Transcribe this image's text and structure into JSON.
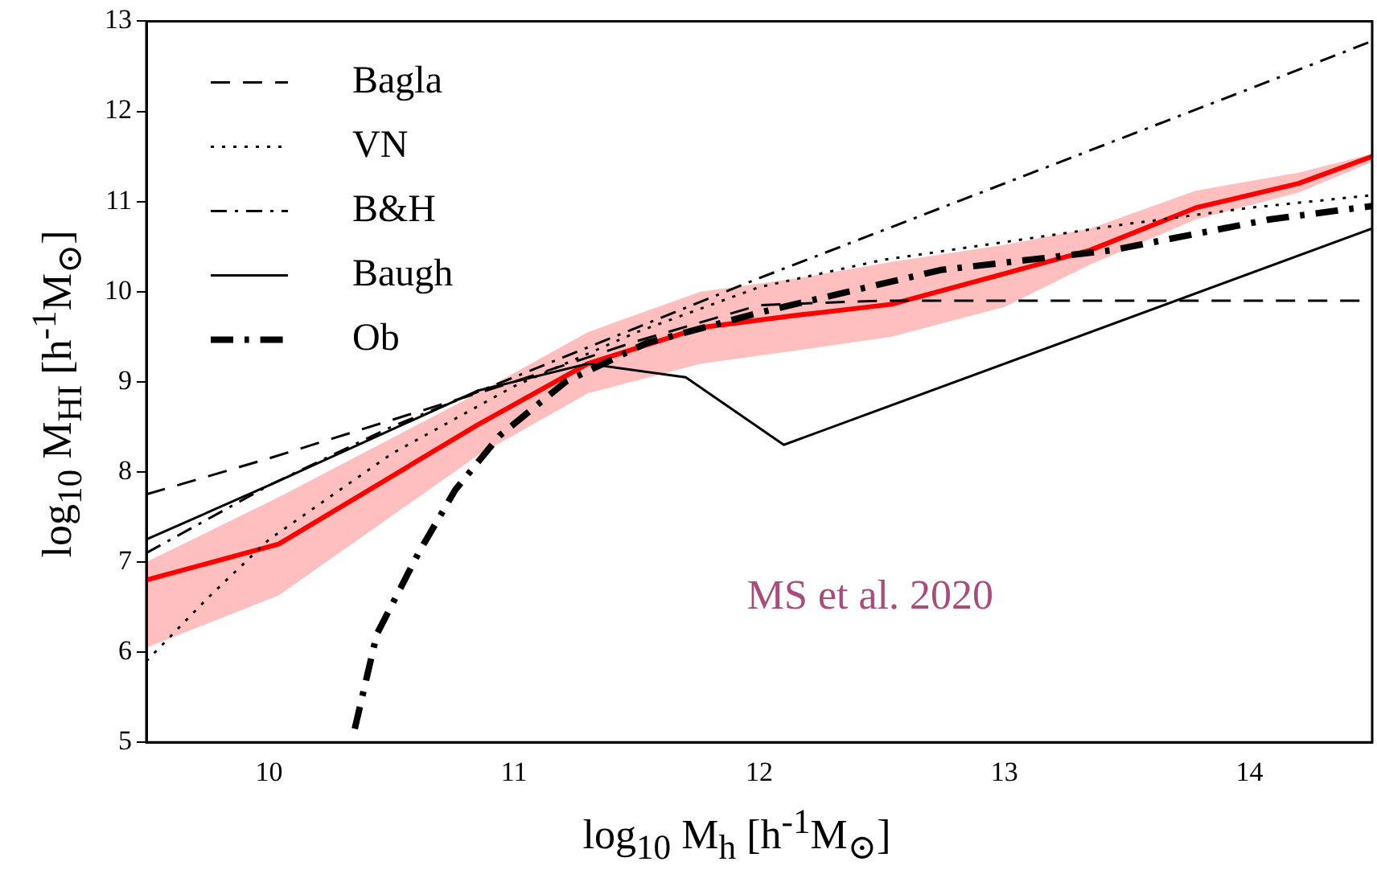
{
  "chart_data": {
    "type": "line",
    "xlabel": "log$_{10}$ M$_{h}$ [h$^{-1}$M$_{⊙}$]",
    "ylabel": "log$_{10}$ M$_{HI}$ [h$^{-1}$M$_{⊙}$]",
    "xlim": [
      9.5,
      14.5
    ],
    "xticks": [
      10,
      11,
      12,
      13,
      14
    ],
    "ylim": [
      5,
      13
    ],
    "yticks": [
      5,
      6,
      7,
      8,
      9,
      10,
      11,
      12,
      13
    ],
    "legend": "top left",
    "marker": "none",
    "annotations": [
      "MS et al. 2020"
    ],
    "series": [
      {
        "name": "Bagla",
        "color": "#000000",
        "line_style": "dashed",
        "x": [
          9.5,
          10,
          11,
          11.5,
          12,
          12.5,
          14.5
        ],
        "values": [
          7.75,
          8.15,
          9.0,
          9.45,
          9.85,
          9.9,
          9.9
        ]
      },
      {
        "name": "VN",
        "color": "#000000",
        "line_style": "dotted",
        "x": [
          9.5,
          9.75,
          10,
          10.5,
          11,
          11.5,
          12,
          12.5,
          13,
          13.5,
          14,
          14.5
        ],
        "values": [
          5.9,
          6.6,
          7.25,
          8.2,
          8.95,
          9.55,
          10.05,
          10.35,
          10.55,
          10.75,
          10.93,
          11.07
        ]
      },
      {
        "name": "B&H",
        "color": "#000000",
        "line_style": "dashdot",
        "x": [
          9.5,
          10,
          10.5,
          11,
          11.5,
          12,
          13,
          14,
          14.5
        ],
        "values": [
          7.1,
          7.85,
          8.5,
          9.05,
          9.6,
          10.15,
          11.2,
          12.25,
          12.78
        ]
      },
      {
        "name": "Baugh",
        "color": "#000000",
        "line_style": "solid",
        "x": [
          9.5,
          10,
          10.85,
          11.3,
          11.7,
          12.1,
          14.5
        ],
        "values": [
          7.25,
          7.85,
          8.9,
          9.2,
          9.05,
          8.3,
          10.7
        ]
      },
      {
        "name": "Ob",
        "color": "#000000",
        "line_style": "dashdot",
        "x": [
          10.35,
          10.44,
          10.61,
          10.76,
          10.94,
          11.21,
          11.54,
          12.02,
          12.74,
          13.44,
          14.08,
          14.5
        ],
        "values": [
          5.15,
          6.2,
          7.1,
          7.8,
          8.4,
          9.0,
          9.43,
          9.78,
          10.24,
          10.46,
          10.8,
          10.95
        ]
      },
      {
        "color": "#ff0000",
        "line_style": "solid",
        "x": [
          9.5,
          10.04,
          10.85,
          11.3,
          11.76,
          12.16,
          12.54,
          13.0,
          13.35,
          13.78,
          14.2,
          14.5
        ],
        "values": [
          6.8,
          7.2,
          8.52,
          9.2,
          9.6,
          9.74,
          9.86,
          10.2,
          10.46,
          10.93,
          11.2,
          11.5
        ],
        "lower": [
          6.05,
          6.63,
          8.18,
          8.87,
          9.2,
          9.35,
          9.5,
          9.83,
          10.3,
          10.8,
          11.1,
          11.44
        ],
        "upper": [
          7.0,
          7.72,
          8.87,
          9.55,
          10.0,
          10.15,
          10.33,
          10.52,
          10.7,
          11.12,
          11.32,
          11.53
        ]
      }
    ]
  }
}
